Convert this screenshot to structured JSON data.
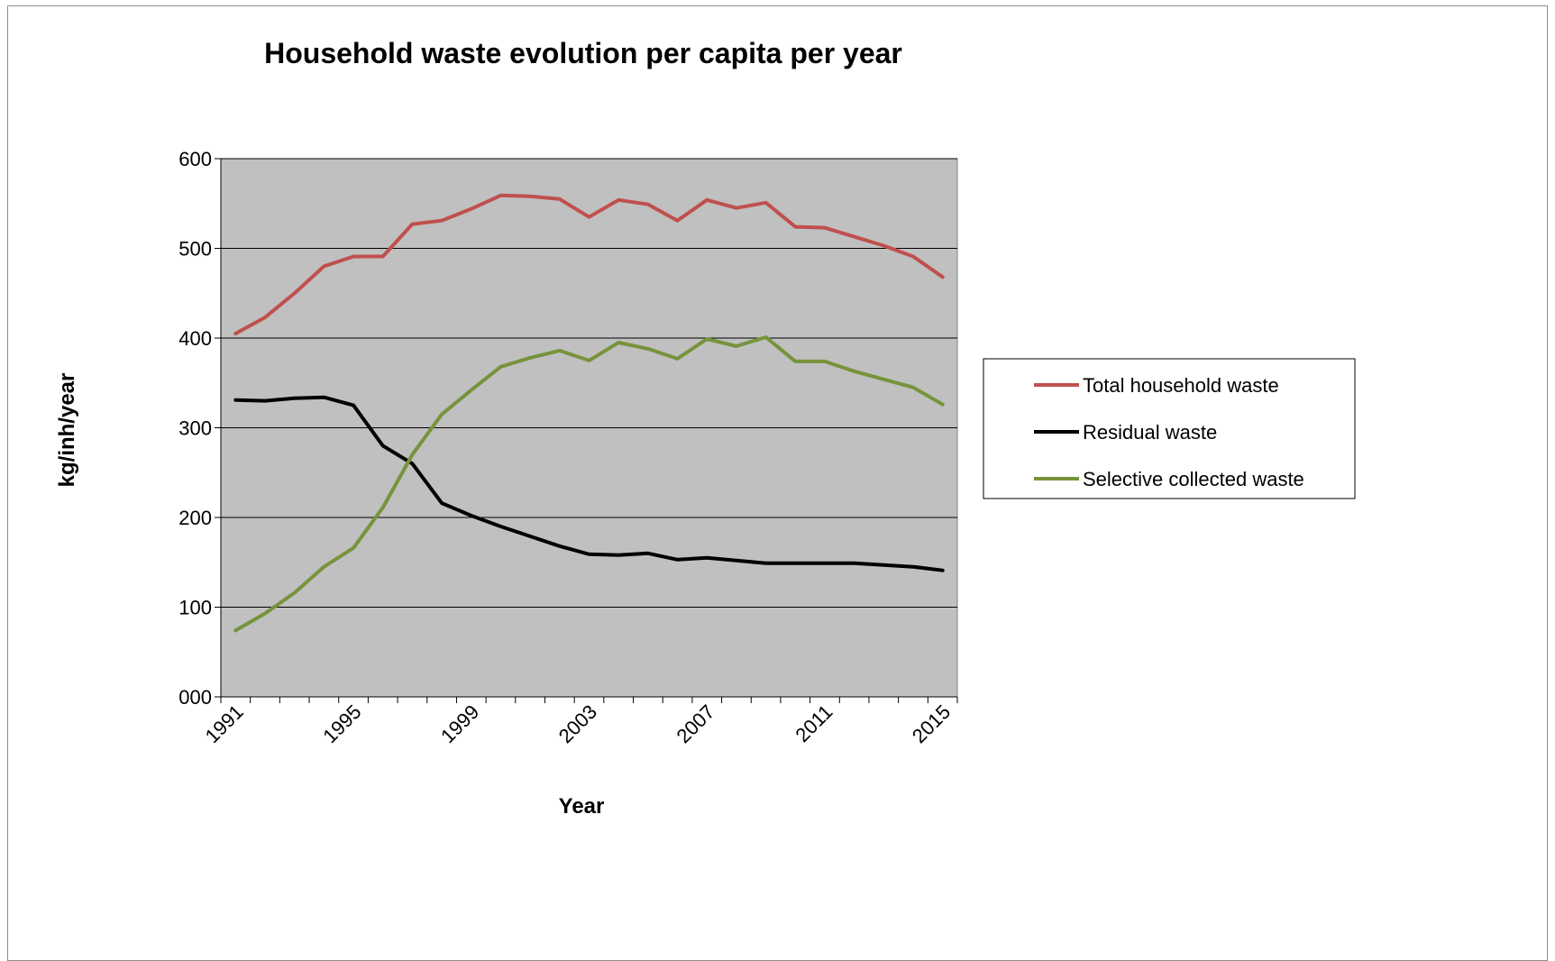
{
  "chart_data": {
    "type": "line",
    "title": "Household waste evolution per capita per year",
    "xlabel": "Year",
    "ylabel": "kg/inh/year",
    "x": [
      1991,
      1992,
      1993,
      1994,
      1995,
      1996,
      1997,
      1998,
      1999,
      2000,
      2001,
      2002,
      2003,
      2004,
      2005,
      2006,
      2007,
      2008,
      2009,
      2010,
      2011,
      2012,
      2013,
      2014,
      2015
    ],
    "x_tick_labels": [
      "1991",
      "1995",
      "1999",
      "2003",
      "2007",
      "2011",
      "2015"
    ],
    "y_tick_labels": [
      "000",
      "100",
      "200",
      "300",
      "400",
      "500",
      "600"
    ],
    "ylim": [
      0,
      600
    ],
    "grid": true,
    "legend_position": "right",
    "plot_background": "#c0c0c0",
    "series": [
      {
        "name": "Total household waste",
        "color": "#c0504d",
        "values": [
          405,
          423,
          450,
          480,
          491,
          491,
          527,
          531,
          544,
          559,
          558,
          555,
          535,
          554,
          549,
          531,
          554,
          545,
          551,
          524,
          523,
          513,
          503,
          491,
          468
        ]
      },
      {
        "name": "Residual waste",
        "color": "#000000",
        "values": [
          331,
          330,
          333,
          334,
          325,
          280,
          260,
          216,
          202,
          190,
          179,
          168,
          159,
          158,
          160,
          153,
          155,
          152,
          149,
          149,
          149,
          149,
          147,
          145,
          141
        ]
      },
      {
        "name": "Selective collected waste",
        "color": "#77933c",
        "values": [
          74,
          93,
          116,
          145,
          166,
          211,
          270,
          315,
          342,
          368,
          378,
          386,
          375,
          395,
          388,
          377,
          399,
          391,
          401,
          374,
          374,
          363,
          354,
          345,
          326
        ]
      }
    ]
  }
}
